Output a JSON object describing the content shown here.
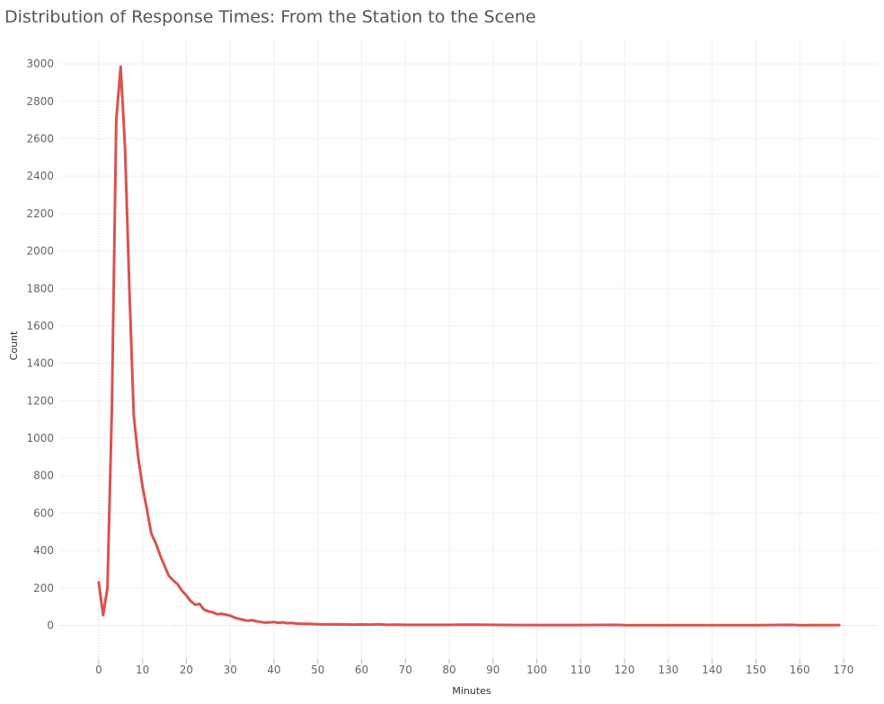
{
  "chart_data": {
    "type": "line",
    "title": "Distribution of Response Times: From the Station to the Scene",
    "xlabel": "Minutes",
    "ylabel": "Count",
    "xlim": [
      -9,
      178
    ],
    "ylim": [
      -180,
      3130
    ],
    "xticks": [
      0,
      10,
      20,
      30,
      40,
      50,
      60,
      70,
      80,
      90,
      100,
      110,
      120,
      130,
      140,
      150,
      160,
      170
    ],
    "yticks": [
      0,
      200,
      400,
      600,
      800,
      1000,
      1200,
      1400,
      1600,
      1800,
      2000,
      2200,
      2400,
      2600,
      2800,
      3000
    ],
    "grid": true,
    "line_color": "#d9534f",
    "series": [
      {
        "x": [
          0,
          1,
          2,
          3,
          4,
          5,
          6,
          7,
          8,
          9,
          10,
          11,
          12,
          13,
          14,
          15,
          16,
          17,
          18,
          19,
          20,
          21,
          22,
          23,
          24,
          25,
          26,
          27,
          28,
          29,
          30,
          31,
          32,
          33,
          34,
          35,
          36,
          37,
          38,
          39,
          40,
          41,
          42,
          43,
          44,
          45,
          46,
          47,
          48,
          49,
          50,
          52,
          54,
          56,
          58,
          60,
          62,
          64,
          66,
          68,
          70,
          75,
          80,
          85,
          90,
          95,
          100,
          110,
          118,
          120,
          130,
          140,
          150,
          158,
          160,
          169
        ],
        "values": [
          230,
          55,
          200,
          1150,
          2700,
          2985,
          2550,
          1800,
          1120,
          900,
          740,
          620,
          490,
          440,
          375,
          320,
          265,
          240,
          220,
          185,
          160,
          130,
          110,
          115,
          85,
          75,
          70,
          60,
          62,
          58,
          52,
          42,
          35,
          30,
          25,
          28,
          22,
          18,
          15,
          16,
          18,
          14,
          16,
          12,
          13,
          10,
          9,
          8,
          8,
          7,
          6,
          5,
          6,
          5,
          4,
          5,
          4,
          6,
          3,
          4,
          3,
          3,
          3,
          4,
          3,
          2,
          2,
          2,
          3,
          1,
          1,
          1,
          1,
          3,
          1,
          2
        ]
      }
    ]
  }
}
